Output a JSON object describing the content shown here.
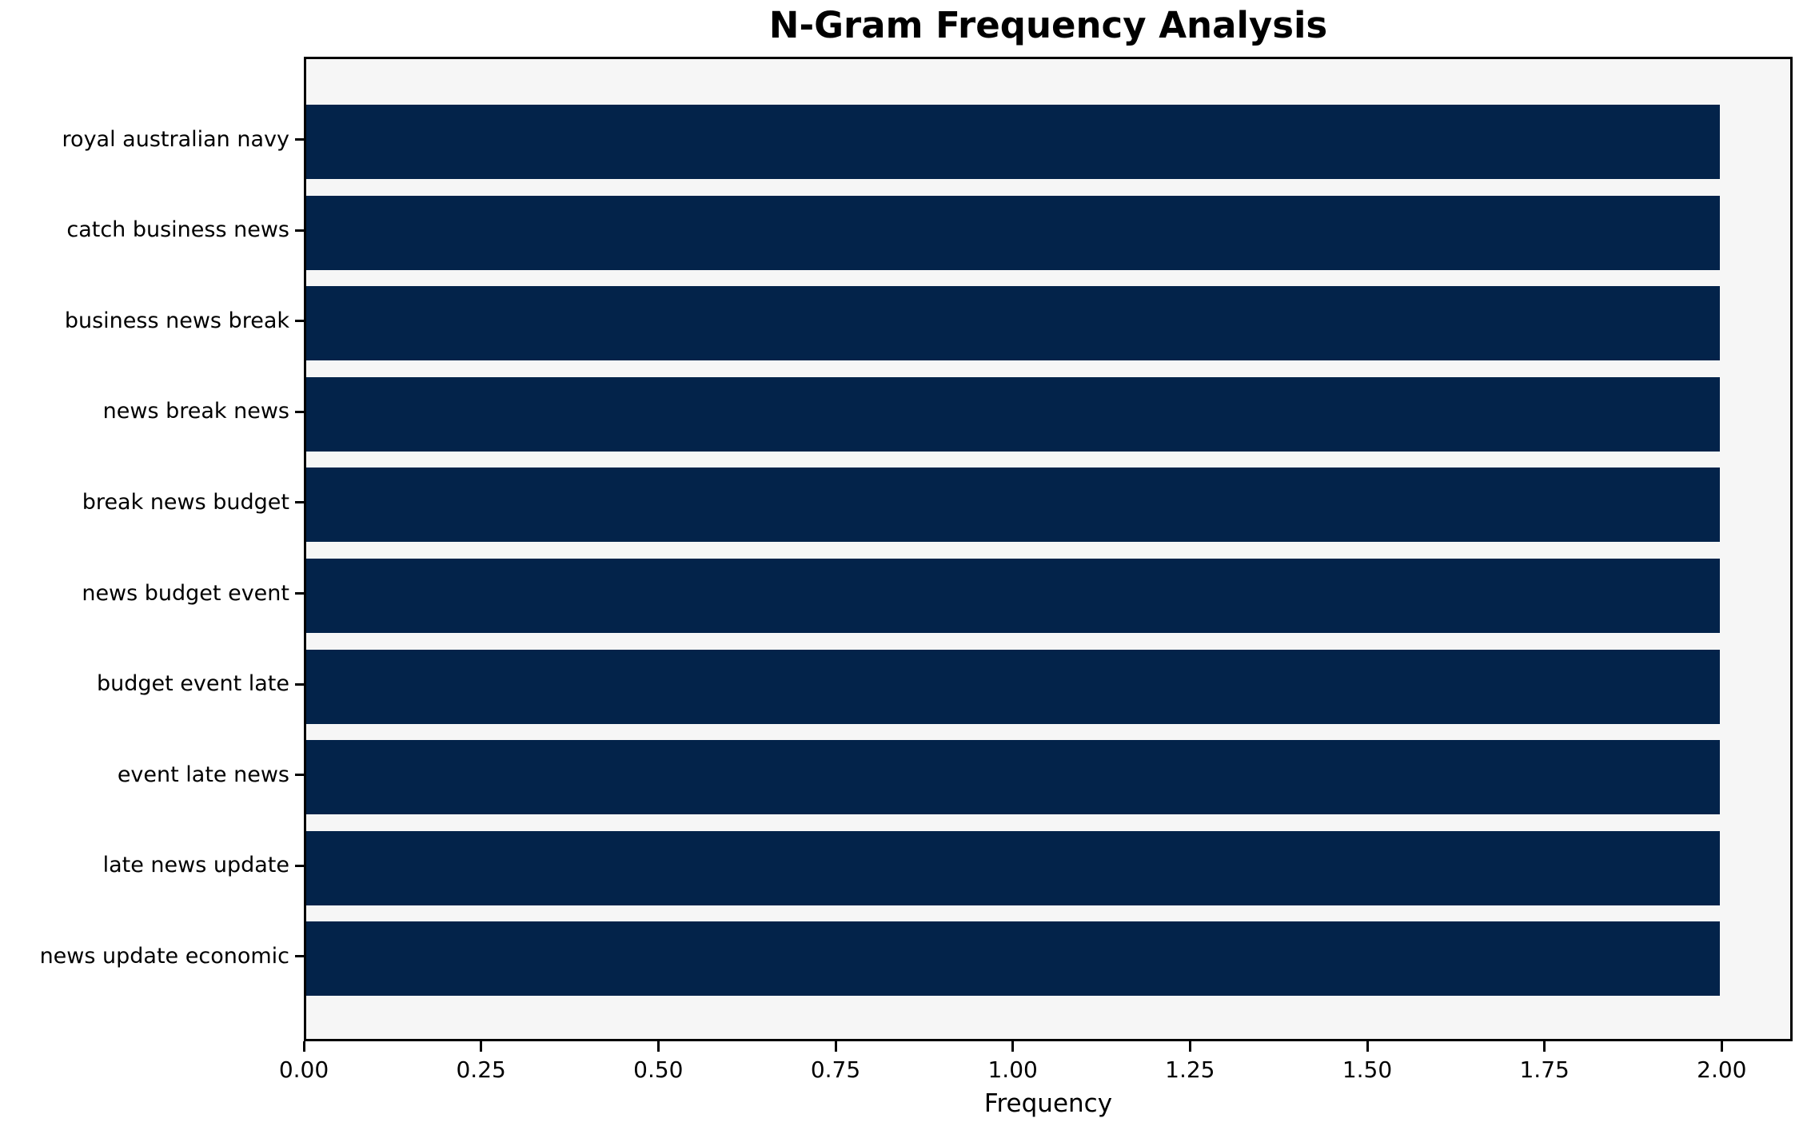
{
  "chart_data": {
    "type": "bar",
    "orientation": "horizontal",
    "title": "N-Gram Frequency Analysis",
    "xlabel": "Frequency",
    "ylabel": "",
    "categories": [
      "royal australian navy",
      "catch business news",
      "business news break",
      "news break news",
      "break news budget",
      "news budget event",
      "budget event late",
      "event late news",
      "late news update",
      "news update economic"
    ],
    "values": [
      2,
      2,
      2,
      2,
      2,
      2,
      2,
      2,
      2,
      2
    ],
    "xlim": [
      0,
      2.1
    ],
    "xtick_values": [
      0,
      0.25,
      0.5,
      0.75,
      1.0,
      1.25,
      1.5,
      1.75,
      2.0
    ],
    "xtick_labels": [
      "0.00",
      "0.25",
      "0.50",
      "0.75",
      "1.00",
      "1.25",
      "1.50",
      "1.75",
      "2.00"
    ],
    "grid": false,
    "legend": false,
    "bar_color": "#03234a",
    "plot_background": "#f6f6f6",
    "figure_background": "#ffffff",
    "text_color": "#000000"
  }
}
